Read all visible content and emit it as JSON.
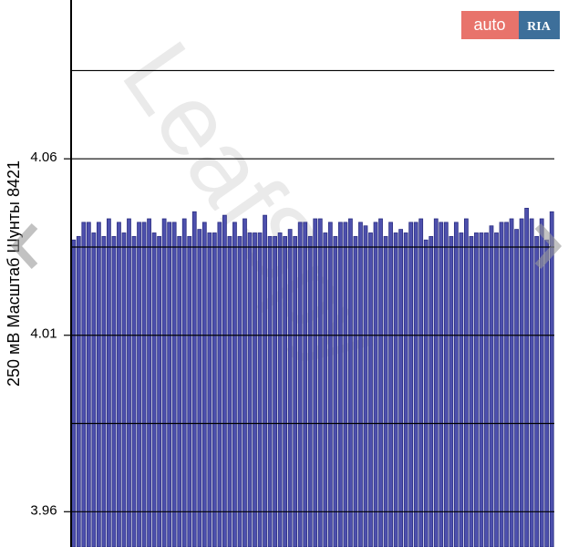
{
  "chart_data": {
    "type": "bar",
    "y_label": "250 мВ Масштаб   Шунты 8421",
    "values": [
      4.037,
      4.038,
      4.042,
      4.042,
      4.039,
      4.042,
      4.038,
      4.043,
      4.038,
      4.042,
      4.039,
      4.043,
      4.038,
      4.042,
      4.042,
      4.043,
      4.039,
      4.038,
      4.043,
      4.042,
      4.042,
      4.038,
      4.043,
      4.038,
      4.045,
      4.04,
      4.042,
      4.039,
      4.039,
      4.042,
      4.044,
      4.038,
      4.042,
      4.038,
      4.043,
      4.039,
      4.039,
      4.039,
      4.044,
      4.038,
      4.038,
      4.039,
      4.038,
      4.04,
      4.038,
      4.042,
      4.042,
      4.038,
      4.043,
      4.043,
      4.039,
      4.042,
      4.038,
      4.042,
      4.042,
      4.043,
      4.038,
      4.042,
      4.041,
      4.039,
      4.042,
      4.043,
      4.038,
      4.042,
      4.039,
      4.04,
      4.039,
      4.042,
      4.042,
      4.043,
      4.037,
      4.038,
      4.043,
      4.042,
      4.042,
      4.038,
      4.042,
      4.039,
      4.043,
      4.038,
      4.039,
      4.039,
      4.039,
      4.041,
      4.039,
      4.042,
      4.042,
      4.043,
      4.04,
      4.043,
      4.046,
      4.043,
      4.038,
      4.043,
      4.037,
      4.045
    ],
    "color": "#4d50ad",
    "ylim": [
      3.95,
      4.105
    ],
    "yticks": [
      3.96,
      4.01,
      4.06
    ],
    "ygrid": [
      3.96,
      3.985,
      4.01,
      4.035,
      4.06,
      4.085
    ],
    "grid": true
  },
  "overlay": {
    "logo_left": "auto",
    "logo_right": "RIA"
  }
}
